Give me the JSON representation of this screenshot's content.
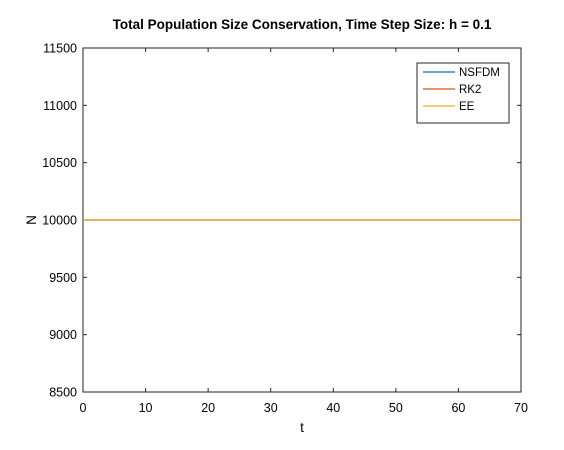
{
  "chart_data": {
    "type": "line",
    "title": "Total Population Size Conservation, Time Step Size: h = 0.1",
    "xlabel": "t",
    "ylabel": "N",
    "xlim": [
      0,
      70
    ],
    "ylim": [
      8500,
      11500
    ],
    "xticks": [
      0,
      10,
      20,
      30,
      40,
      50,
      60,
      70
    ],
    "yticks": [
      8500,
      9000,
      9500,
      10000,
      10500,
      11000,
      11500
    ],
    "grid": false,
    "legend_position": "top-right",
    "series": [
      {
        "name": "NSFDM",
        "color": "#0072BD",
        "x": [
          0,
          70
        ],
        "y": [
          10000,
          10000
        ]
      },
      {
        "name": "RK2",
        "color": "#D95319",
        "x": [
          0,
          70
        ],
        "y": [
          10000,
          10000
        ]
      },
      {
        "name": "EE",
        "color": "#EDB120",
        "x": [
          0,
          70
        ],
        "y": [
          10000,
          10000
        ]
      }
    ]
  }
}
